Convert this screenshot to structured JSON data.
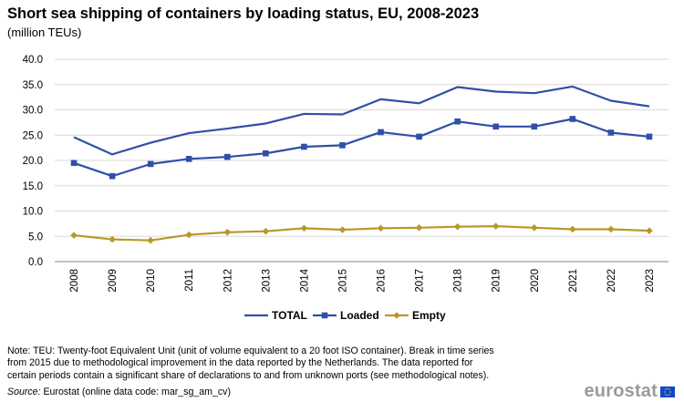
{
  "header": {
    "title": "Short sea shipping of containers by loading status, EU, 2008-2023",
    "subtitle": "(million TEUs)"
  },
  "chart_data": {
    "type": "line",
    "title": "Short sea shipping of containers by loading status, EU, 2008-2023",
    "subtitle": "(million TEUs)",
    "xlabel": "",
    "ylabel": "",
    "ylim": [
      0,
      40
    ],
    "yticks": [
      "0.0",
      "5.0",
      "10.0",
      "15.0",
      "20.0",
      "25.0",
      "30.0",
      "35.0",
      "40.0"
    ],
    "grid": "horizontal",
    "legend_position": "bottom",
    "categories": [
      "2008",
      "2009",
      "2010",
      "2011",
      "2012",
      "2013",
      "2014",
      "2015",
      "2016",
      "2017",
      "2018",
      "2019",
      "2020",
      "2021",
      "2022",
      "2023"
    ],
    "series": [
      {
        "name": "TOTAL",
        "color": "#2f4fa8",
        "marker": "none",
        "values": [
          24.6,
          21.2,
          23.5,
          25.4,
          26.3,
          27.3,
          29.2,
          29.1,
          32.1,
          31.3,
          34.5,
          33.6,
          33.3,
          34.6,
          31.8,
          30.7
        ]
      },
      {
        "name": "Loaded",
        "color": "#2f4fa8",
        "marker": "square",
        "values": [
          19.5,
          16.9,
          19.3,
          20.3,
          20.7,
          21.4,
          22.7,
          23.0,
          25.6,
          24.7,
          27.7,
          26.7,
          26.7,
          28.2,
          25.5,
          24.7
        ]
      },
      {
        "name": "Empty",
        "color": "#b8982a",
        "marker": "diamond",
        "values": [
          5.2,
          4.4,
          4.2,
          5.3,
          5.8,
          6.0,
          6.6,
          6.3,
          6.6,
          6.7,
          6.9,
          7.0,
          6.7,
          6.4,
          6.4,
          6.1
        ]
      }
    ]
  },
  "footer": {
    "note_line1": "Note: TEU: Twenty-foot  Equivalent Unit (unit of volume equivalent to a 20 foot ISO container). Break in time series",
    "note_line2": "from 2015 due to methodological improvement in the data reported by the Netherlands.  The data reported for",
    "note_line3": "certain periods contain a significant share of declarations to and from unknown ports (see methodological notes).",
    "source_label": "Source:",
    "source_text": " Eurostat (online data code: mar_sg_am_cv)",
    "logo_text": "eurostat"
  }
}
